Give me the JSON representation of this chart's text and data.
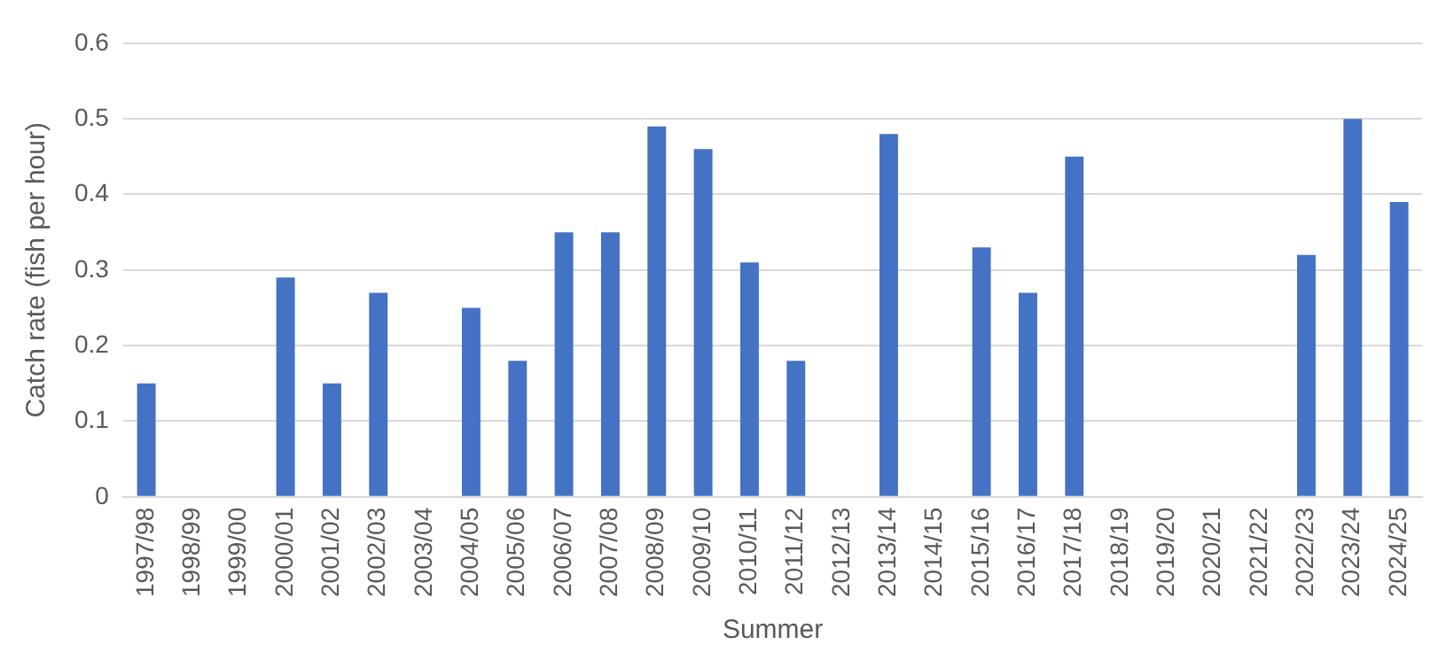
{
  "chart_data": {
    "type": "bar",
    "xlabel": "Summer",
    "ylabel": "Catch rate (fish per hour)",
    "categories": [
      "1997/98",
      "1998/99",
      "1999/00",
      "2000/01",
      "2001/02",
      "2002/03",
      "2003/04",
      "2004/05",
      "2005/06",
      "2006/07",
      "2007/08",
      "2008/09",
      "2009/10",
      "2010/11",
      "2011/12",
      "2012/13",
      "2013/14",
      "2014/15",
      "2015/16",
      "2016/17",
      "2017/18",
      "2018/19",
      "2019/20",
      "2020/21",
      "2021/22",
      "2022/23",
      "2023/24",
      "2024/25"
    ],
    "values": [
      0.15,
      null,
      null,
      0.29,
      0.15,
      0.27,
      null,
      0.25,
      0.18,
      0.35,
      0.35,
      0.49,
      0.46,
      0.31,
      0.18,
      null,
      0.48,
      null,
      0.33,
      0.27,
      0.45,
      null,
      null,
      null,
      null,
      0.32,
      0.5,
      0.39
    ],
    "color": "#4472c4",
    "ylim": [
      0,
      0.6
    ],
    "yticks": [
      0,
      0.1,
      0.2,
      0.3,
      0.4,
      0.5,
      0.6
    ],
    "grid": "y",
    "legend": false
  }
}
